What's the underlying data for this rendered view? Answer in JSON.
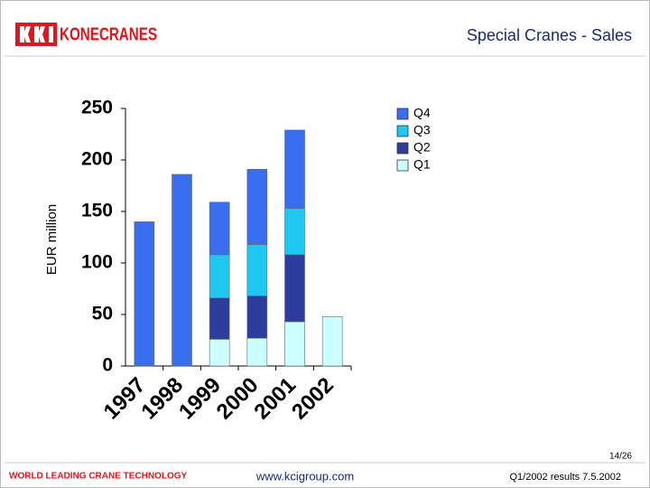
{
  "page": {
    "logo": "KONECRANES",
    "slide_title": "Special Cranes - Sales",
    "page_number": "14/26",
    "tagline": "WORLD LEADING CRANE TECHNOLOGY",
    "url": "www.kcigroup.com",
    "footer_right": "Q1/2002 results 7.5.2002"
  },
  "chart_data": {
    "type": "stacked-bar",
    "y_label": "EUR million",
    "categories": [
      "1997",
      "1998",
      "1999",
      "2000",
      "2001",
      "2002"
    ],
    "series": [
      {
        "name": "Q1",
        "color": "#ccffff",
        "values": [
          null,
          null,
          26,
          27,
          43,
          48
        ]
      },
      {
        "name": "Q2",
        "color": "#2e3c9e",
        "values": [
          null,
          null,
          40,
          41,
          65,
          null
        ]
      },
      {
        "name": "Q3",
        "color": "#1ec8f0",
        "values": [
          null,
          null,
          42,
          50,
          45,
          null
        ]
      },
      {
        "name": "Q4",
        "color": "#3a6ef0",
        "values": [
          140,
          186,
          51,
          73,
          76,
          null
        ]
      }
    ],
    "ylim": [
      0,
      250
    ],
    "yticks": [
      0,
      50,
      100,
      150,
      200,
      250
    ],
    "legend": "top-right"
  }
}
